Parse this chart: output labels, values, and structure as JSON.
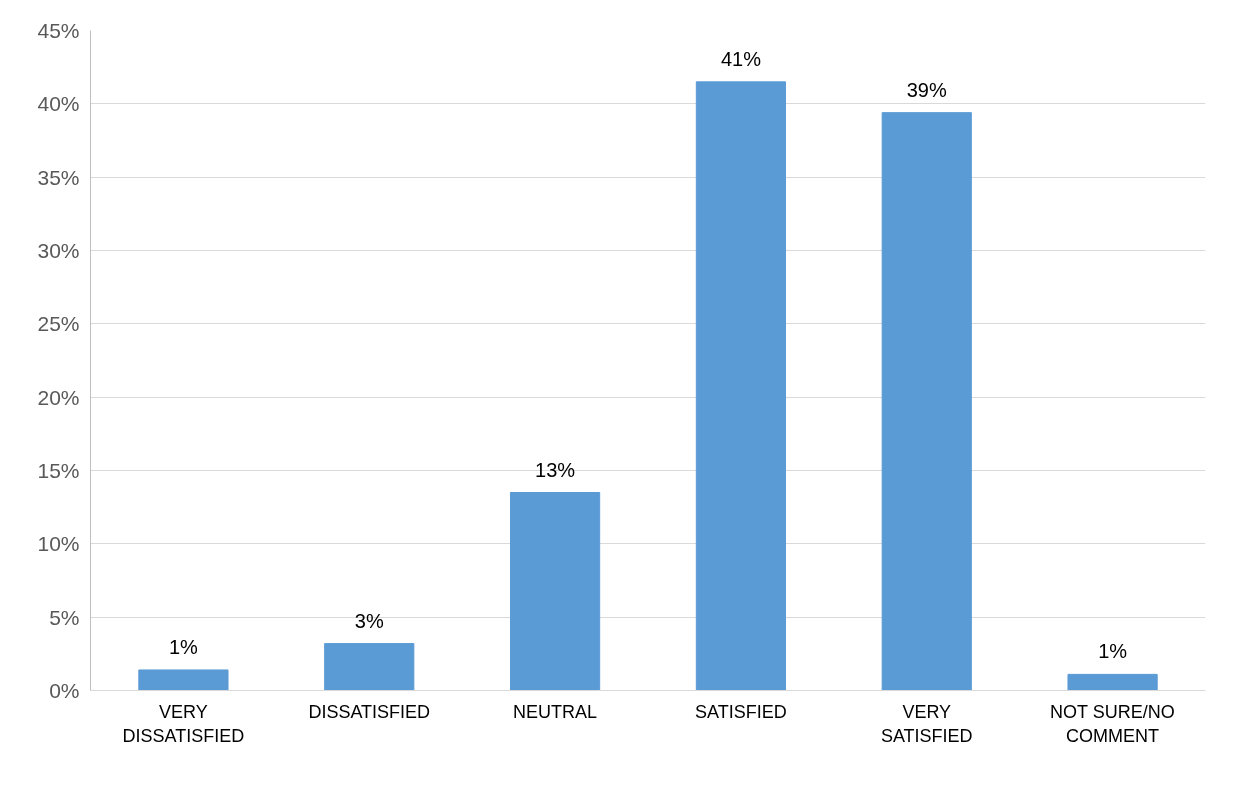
{
  "chart_data": {
    "type": "bar",
    "categories": [
      "VERY DISSATISFIED",
      "DISSATISFIED",
      "NEUTRAL",
      "SATISFIED",
      "VERY SATISFIED",
      "NOT SURE/NO COMMENT"
    ],
    "values": [
      1.4,
      3.2,
      13.5,
      41.5,
      39.4,
      1.1
    ],
    "color": "#5b9bd5",
    "value_labels": [
      "1%",
      "3%",
      "13%",
      "41%",
      "39%",
      "1%"
    ],
    "ylim": [
      0,
      45
    ],
    "yticks": [
      {
        "value": 0,
        "label": "0%"
      },
      {
        "value": 5,
        "label": "5%"
      },
      {
        "value": 10,
        "label": "10%"
      },
      {
        "value": 15,
        "label": "15%"
      },
      {
        "value": 20,
        "label": "20%"
      },
      {
        "value": 25,
        "label": "25%"
      },
      {
        "value": 30,
        "label": "30%"
      },
      {
        "value": 35,
        "label": "35%"
      },
      {
        "value": 40,
        "label": "40%"
      },
      {
        "value": 45,
        "label": "45%"
      }
    ],
    "grid": "y"
  }
}
